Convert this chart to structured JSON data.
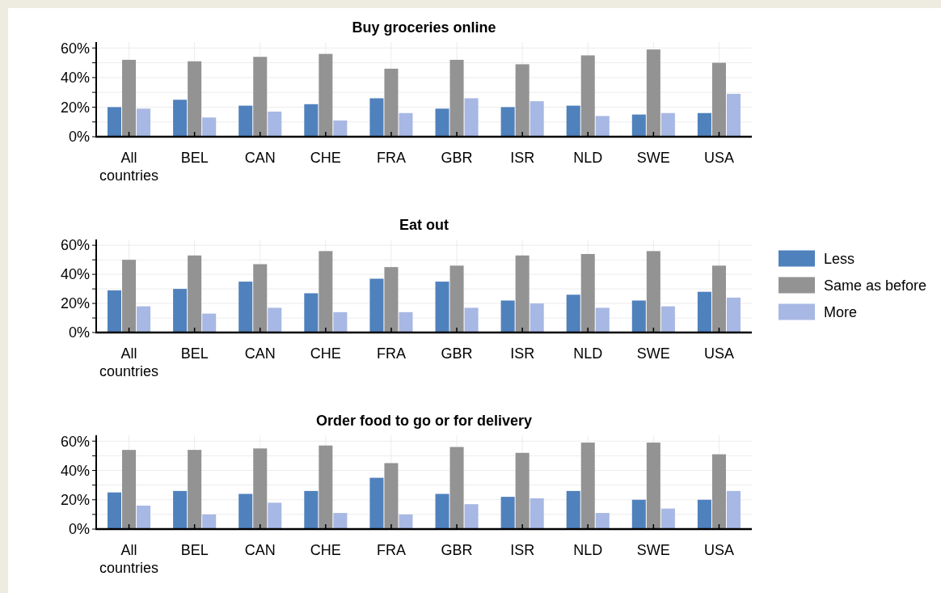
{
  "chart_data": [
    {
      "type": "bar",
      "title": "Buy groceries online",
      "categories": [
        "All countries",
        "BEL",
        "CAN",
        "CHE",
        "FRA",
        "GBR",
        "ISR",
        "NLD",
        "SWE",
        "USA"
      ],
      "ylim": [
        0,
        64
      ],
      "yticks": [
        {
          "value": 0,
          "label": "0%"
        },
        {
          "value": 10,
          "label": null
        },
        {
          "value": 20,
          "label": "20%"
        },
        {
          "value": 30,
          "label": null
        },
        {
          "value": 40,
          "label": "40%"
        },
        {
          "value": 50,
          "label": null
        },
        {
          "value": 60,
          "label": "60%"
        }
      ],
      "grid": true,
      "series": [
        {
          "color": "#4f81bd",
          "values": [
            20,
            25,
            21,
            22,
            26,
            19,
            20,
            21,
            15,
            16
          ]
        },
        {
          "color": "#939393",
          "values": [
            52,
            51,
            54,
            56,
            46,
            52,
            49,
            55,
            59,
            50
          ]
        },
        {
          "color": "#a8b8e4",
          "values": [
            19,
            13,
            17,
            11,
            16,
            26,
            24,
            14,
            16,
            29
          ]
        }
      ]
    },
    {
      "type": "bar",
      "title": "Eat out",
      "categories": [
        "All countries",
        "BEL",
        "CAN",
        "CHE",
        "FRA",
        "GBR",
        "ISR",
        "NLD",
        "SWE",
        "USA"
      ],
      "ylim": [
        0,
        64
      ],
      "yticks": [
        {
          "value": 0,
          "label": "0%"
        },
        {
          "value": 10,
          "label": null
        },
        {
          "value": 20,
          "label": "20%"
        },
        {
          "value": 30,
          "label": null
        },
        {
          "value": 40,
          "label": "40%"
        },
        {
          "value": 50,
          "label": null
        },
        {
          "value": 60,
          "label": "60%"
        }
      ],
      "grid": true,
      "legend": "right",
      "series": [
        {
          "name": "Less",
          "color": "#4f81bd",
          "values": [
            29,
            30,
            35,
            27,
            37,
            35,
            22,
            26,
            22,
            28
          ]
        },
        {
          "name": "Same as before",
          "color": "#939393",
          "values": [
            50,
            53,
            47,
            56,
            45,
            46,
            53,
            54,
            56,
            46
          ]
        },
        {
          "name": "More",
          "color": "#a8b8e4",
          "values": [
            18,
            13,
            17,
            14,
            14,
            17,
            20,
            17,
            18,
            24
          ]
        }
      ]
    },
    {
      "type": "bar",
      "title": "Order food to go or for delivery",
      "categories": [
        "All countries",
        "BEL",
        "CAN",
        "CHE",
        "FRA",
        "GBR",
        "ISR",
        "NLD",
        "SWE",
        "USA"
      ],
      "ylim": [
        0,
        64
      ],
      "yticks": [
        {
          "value": 0,
          "label": "0%"
        },
        {
          "value": 10,
          "label": null
        },
        {
          "value": 20,
          "label": "20%"
        },
        {
          "value": 30,
          "label": null
        },
        {
          "value": 40,
          "label": "40%"
        },
        {
          "value": 50,
          "label": null
        },
        {
          "value": 60,
          "label": "60%"
        }
      ],
      "grid": true,
      "series": [
        {
          "color": "#4f81bd",
          "values": [
            25,
            26,
            24,
            26,
            35,
            24,
            22,
            26,
            20,
            20
          ]
        },
        {
          "color": "#939393",
          "values": [
            54,
            54,
            55,
            57,
            45,
            56,
            52,
            59,
            59,
            51
          ]
        },
        {
          "color": "#a8b8e4",
          "values": [
            16,
            10,
            18,
            11,
            10,
            17,
            21,
            11,
            14,
            26
          ]
        }
      ]
    }
  ]
}
